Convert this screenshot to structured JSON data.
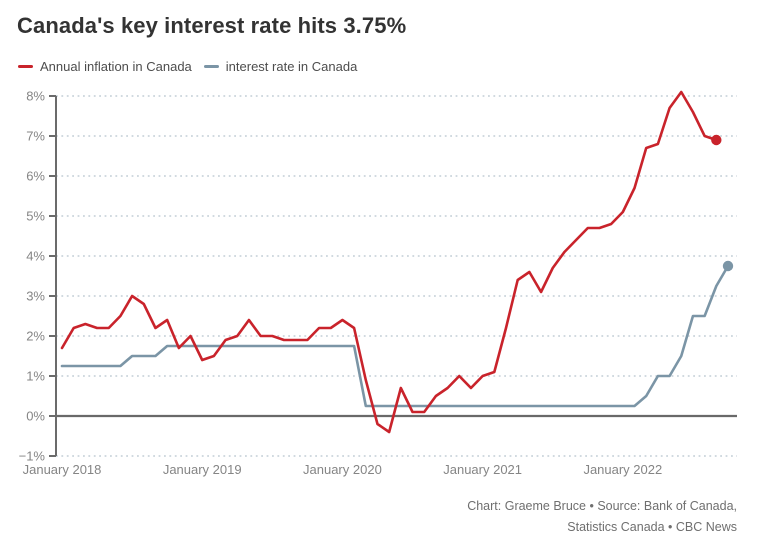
{
  "title": "Canada's key interest rate hits 3.75%",
  "footer": {
    "line1": "Chart: Graeme Bruce • Source: Bank of Canada,",
    "line2": "Statistics Canada • CBC News"
  },
  "chart_data": {
    "type": "line",
    "title": "Canada's key interest rate hits 3.75%",
    "x_frequency": "monthly",
    "x_start": "January 2018",
    "x_axis": {
      "ticks": [
        {
          "label": "January 2018",
          "month_index": 0
        },
        {
          "label": "January 2019",
          "month_index": 12
        },
        {
          "label": "January 2020",
          "month_index": 24
        },
        {
          "label": "January 2021",
          "month_index": 36
        },
        {
          "label": "January 2022",
          "month_index": 48
        }
      ]
    },
    "y_axis": {
      "min": -1,
      "max": 8,
      "tick_step": 1,
      "ticks": [
        {
          "value": 8,
          "label": "8%"
        },
        {
          "value": 7,
          "label": "7%"
        },
        {
          "value": 6,
          "label": "6%"
        },
        {
          "value": 5,
          "label": "5%"
        },
        {
          "value": 4,
          "label": "4%"
        },
        {
          "value": 3,
          "label": "3%"
        },
        {
          "value": 2,
          "label": "2%"
        },
        {
          "value": 1,
          "label": "1%"
        },
        {
          "value": 0,
          "label": "0%"
        },
        {
          "value": -1,
          "label": "−1%"
        }
      ]
    },
    "series": [
      {
        "name": "Annual inflation in Canada",
        "color": "#c9232b",
        "start": "2018-01",
        "end": "2022-09",
        "end_dot": true,
        "end_value": 6.9,
        "values": [
          1.7,
          2.2,
          2.3,
          2.2,
          2.2,
          2.5,
          3.0,
          2.8,
          2.2,
          2.4,
          1.7,
          2.0,
          1.4,
          1.5,
          1.9,
          2.0,
          2.4,
          2.0,
          2.0,
          1.9,
          1.9,
          1.9,
          2.2,
          2.2,
          2.4,
          2.2,
          0.9,
          -0.2,
          -0.4,
          0.7,
          0.1,
          0.1,
          0.5,
          0.7,
          1.0,
          0.7,
          1.0,
          1.1,
          2.2,
          3.4,
          3.6,
          3.1,
          3.7,
          4.1,
          4.4,
          4.7,
          4.7,
          4.8,
          5.1,
          5.7,
          6.7,
          6.8,
          7.7,
          8.1,
          7.6,
          7.0,
          6.9
        ]
      },
      {
        "name": "interest rate in Canada",
        "color": "#7b95a6",
        "start": "2018-01",
        "end": "2022-10",
        "end_dot": true,
        "end_value": 3.75,
        "values": [
          1.25,
          1.25,
          1.25,
          1.25,
          1.25,
          1.25,
          1.5,
          1.5,
          1.5,
          1.75,
          1.75,
          1.75,
          1.75,
          1.75,
          1.75,
          1.75,
          1.75,
          1.75,
          1.75,
          1.75,
          1.75,
          1.75,
          1.75,
          1.75,
          1.75,
          1.75,
          0.25,
          0.25,
          0.25,
          0.25,
          0.25,
          0.25,
          0.25,
          0.25,
          0.25,
          0.25,
          0.25,
          0.25,
          0.25,
          0.25,
          0.25,
          0.25,
          0.25,
          0.25,
          0.25,
          0.25,
          0.25,
          0.25,
          0.25,
          0.25,
          0.5,
          1.0,
          1.0,
          1.5,
          2.5,
          2.5,
          3.25,
          3.75
        ]
      }
    ],
    "colors": {
      "grid": "#c2cdd6",
      "axis": "#6b6b6b",
      "zero_line": "#696969",
      "tick_label": "#858585"
    },
    "layout_hints": {
      "grid": "dotted horizontal lines each 1%",
      "zero_line": "solid",
      "legend_position": "top-left under title"
    }
  }
}
